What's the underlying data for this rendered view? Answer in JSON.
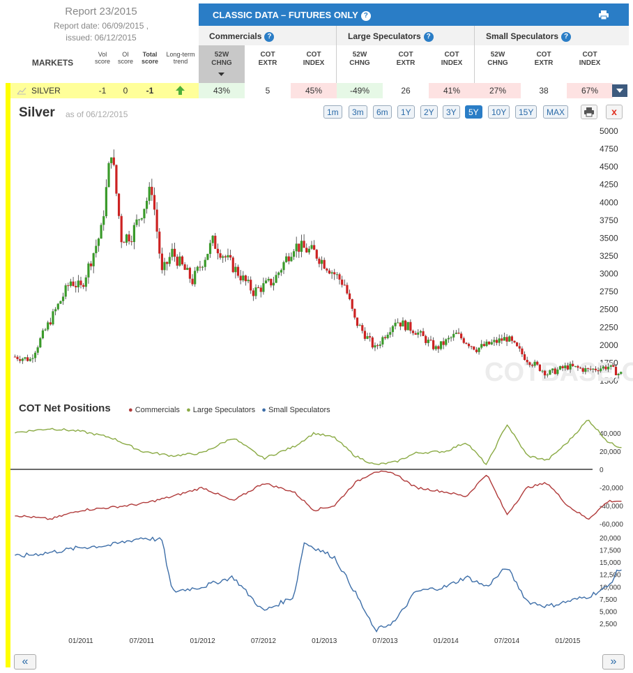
{
  "report": {
    "title": "Report 23/2015",
    "report_date_line": "Report date: 06/09/2015 ,",
    "issued_line": "issued: 06/12/2015"
  },
  "header": {
    "title": "CLASSIC DATA – FUTURES ONLY",
    "groups": [
      "Commercials",
      "Large Speculators",
      "Small Speculators"
    ]
  },
  "columns": {
    "markets": "MARKETS",
    "vol": [
      "Vol",
      "score"
    ],
    "oi": [
      "OI",
      "score"
    ],
    "total": [
      "Total",
      "score"
    ],
    "trend": [
      "Long-term",
      "trend"
    ],
    "sub": [
      [
        "52W",
        "CHNG"
      ],
      [
        "COT",
        "EXTR"
      ],
      [
        "COT",
        "INDEX"
      ],
      [
        "52W",
        "CHNG"
      ],
      [
        "COT",
        "EXTR"
      ],
      [
        "COT",
        "INDEX"
      ],
      [
        "52W",
        "CHNG"
      ],
      [
        "COT",
        "EXTR"
      ],
      [
        "COT",
        "INDEX"
      ]
    ]
  },
  "row": {
    "market": "SILVER",
    "vol": "-1",
    "oi": "0",
    "total": "-1",
    "values": [
      "43%",
      "5",
      "45%",
      "-49%",
      "26",
      "41%",
      "27%",
      "38",
      "67%"
    ],
    "value_bg": [
      "#e6f8e6",
      "#ffffff",
      "#fde2e2",
      "#e6f8e6",
      "#ffffff",
      "#fde2e2",
      "#fde2e2",
      "#ffffff",
      "#fde2e2"
    ]
  },
  "chart_header": {
    "title": "Silver",
    "asof": "as of 06/12/2015",
    "ranges": [
      "1m",
      "3m",
      "6m",
      "1Y",
      "2Y",
      "3Y",
      "5Y",
      "10Y",
      "15Y",
      "MAX"
    ],
    "active_range": "5Y",
    "close_label": "x"
  },
  "watermark": "COTBASE.COM",
  "net_positions": {
    "title": "COT Net Positions",
    "legend": [
      "Commercials",
      "Large Speculators",
      "Small Speculators"
    ]
  },
  "colors": {
    "accent": "#2a7dc6",
    "up": "#3a9a2a",
    "down": "#cc2222",
    "commercials": "#b03a3a",
    "large": "#8aaa44",
    "small": "#3d6ea8",
    "highlight": "#ffff00"
  },
  "nav": {
    "prev": "«",
    "next": "»"
  },
  "chart_data": [
    {
      "type": "candlestick",
      "title": "Silver",
      "x_ticks": [
        "01/2011",
        "07/2011",
        "01/2012",
        "07/2012",
        "01/2013",
        "07/2013",
        "01/2014",
        "07/2014",
        "01/2015"
      ],
      "y_ticks": [
        1500,
        1750,
        2000,
        2250,
        2500,
        2750,
        3000,
        3250,
        3500,
        3750,
        4000,
        4250,
        4500,
        4750,
        5000
      ],
      "ylim": [
        1500,
        5000
      ],
      "approx_close_path": [
        [
          "06/2010",
          1850
        ],
        [
          "08/2010",
          1800
        ],
        [
          "10/2010",
          2350
        ],
        [
          "12/2010",
          2900
        ],
        [
          "01/2011",
          2800
        ],
        [
          "03/2011",
          3600
        ],
        [
          "04/2011",
          4750
        ],
        [
          "05/2011",
          3500
        ],
        [
          "06/2011",
          3550
        ],
        [
          "08/2011",
          4200
        ],
        [
          "09/2011",
          3000
        ],
        [
          "10/2011",
          3300
        ],
        [
          "12/2011",
          2900
        ],
        [
          "02/2012",
          3450
        ],
        [
          "04/2012",
          3100
        ],
        [
          "06/2012",
          2750
        ],
        [
          "08/2012",
          2900
        ],
        [
          "10/2012",
          3400
        ],
        [
          "12/2012",
          3300
        ],
        [
          "02/2013",
          3000
        ],
        [
          "03/2013",
          2850
        ],
        [
          "04/2013",
          2350
        ],
        [
          "06/2013",
          1950
        ],
        [
          "08/2013",
          2350
        ],
        [
          "10/2013",
          2200
        ],
        [
          "12/2013",
          1950
        ],
        [
          "02/2014",
          2150
        ],
        [
          "04/2014",
          1950
        ],
        [
          "06/2014",
          2050
        ],
        [
          "07/2014",
          2100
        ],
        [
          "09/2014",
          1800
        ],
        [
          "11/2014",
          1600
        ],
        [
          "01/2015",
          1700
        ],
        [
          "03/2015",
          1650
        ],
        [
          "05/2015",
          1700
        ],
        [
          "06/2015",
          1600
        ]
      ]
    },
    {
      "type": "line",
      "title": "COT Net Positions",
      "x_ticks": [
        "01/2011",
        "07/2011",
        "01/2012",
        "07/2012",
        "01/2013",
        "07/2013",
        "01/2014",
        "07/2014",
        "01/2015"
      ],
      "upper_y_ticks": [
        40000,
        20000,
        0,
        -20000,
        -40000,
        -60000
      ],
      "lower_y_ticks": [
        20000,
        17500,
        15000,
        12500,
        10000,
        7500,
        5000,
        2500
      ],
      "series": [
        {
          "name": "Large Speculators",
          "values": [
            [
              "06/2010",
              40000
            ],
            [
              "10/2010",
              45000
            ],
            [
              "01/2011",
              42000
            ],
            [
              "04/2011",
              35000
            ],
            [
              "07/2011",
              20000
            ],
            [
              "10/2011",
              15000
            ],
            [
              "01/2012",
              18000
            ],
            [
              "04/2012",
              35000
            ],
            [
              "07/2012",
              12000
            ],
            [
              "10/2012",
              25000
            ],
            [
              "12/2012",
              40000
            ],
            [
              "02/2013",
              35000
            ],
            [
              "04/2013",
              15000
            ],
            [
              "06/2013",
              5000
            ],
            [
              "08/2013",
              8000
            ],
            [
              "10/2013",
              18000
            ],
            [
              "01/2014",
              20000
            ],
            [
              "03/2014",
              30000
            ],
            [
              "05/2014",
              5000
            ],
            [
              "07/2014",
              50000
            ],
            [
              "09/2014",
              15000
            ],
            [
              "11/2014",
              10000
            ],
            [
              "01/2015",
              30000
            ],
            [
              "03/2015",
              55000
            ],
            [
              "05/2015",
              30000
            ],
            [
              "06/2015",
              25000
            ]
          ]
        },
        {
          "name": "Commercials",
          "values": [
            [
              "06/2010",
              -50000
            ],
            [
              "10/2010",
              -55000
            ],
            [
              "01/2011",
              -45000
            ],
            [
              "04/2011",
              -42000
            ],
            [
              "07/2011",
              -38000
            ],
            [
              "10/2011",
              -30000
            ],
            [
              "01/2012",
              -20000
            ],
            [
              "04/2012",
              -35000
            ],
            [
              "07/2012",
              -15000
            ],
            [
              "10/2012",
              -25000
            ],
            [
              "12/2012",
              -45000
            ],
            [
              "02/2013",
              -40000
            ],
            [
              "04/2013",
              -15000
            ],
            [
              "06/2013",
              -2000
            ],
            [
              "08/2013",
              -5000
            ],
            [
              "10/2013",
              -20000
            ],
            [
              "01/2014",
              -25000
            ],
            [
              "03/2014",
              -30000
            ],
            [
              "05/2014",
              -5000
            ],
            [
              "07/2014",
              -50000
            ],
            [
              "09/2014",
              -20000
            ],
            [
              "11/2014",
              -15000
            ],
            [
              "01/2015",
              -40000
            ],
            [
              "03/2015",
              -55000
            ],
            [
              "05/2015",
              -35000
            ],
            [
              "06/2015",
              -35000
            ]
          ]
        },
        {
          "name": "Small Speculators",
          "values": [
            [
              "06/2010",
              16000
            ],
            [
              "10/2010",
              17000
            ],
            [
              "01/2011",
              18000
            ],
            [
              "04/2011",
              18500
            ],
            [
              "07/2011",
              20000
            ],
            [
              "09/2011",
              19500
            ],
            [
              "10/2011",
              9000
            ],
            [
              "01/2012",
              10000
            ],
            [
              "04/2012",
              12000
            ],
            [
              "07/2012",
              5000
            ],
            [
              "10/2012",
              8000
            ],
            [
              "11/2012",
              19000
            ],
            [
              "02/2013",
              16000
            ],
            [
              "04/2013",
              9000
            ],
            [
              "06/2013",
              1000
            ],
            [
              "08/2013",
              3000
            ],
            [
              "10/2013",
              9000
            ],
            [
              "01/2014",
              10000
            ],
            [
              "03/2014",
              12000
            ],
            [
              "05/2014",
              10000
            ],
            [
              "07/2014",
              14000
            ],
            [
              "09/2014",
              7000
            ],
            [
              "11/2014",
              6000
            ],
            [
              "01/2015",
              7000
            ],
            [
              "03/2015",
              8000
            ],
            [
              "05/2015",
              10000
            ],
            [
              "06/2015",
              13500
            ]
          ]
        }
      ]
    }
  ]
}
